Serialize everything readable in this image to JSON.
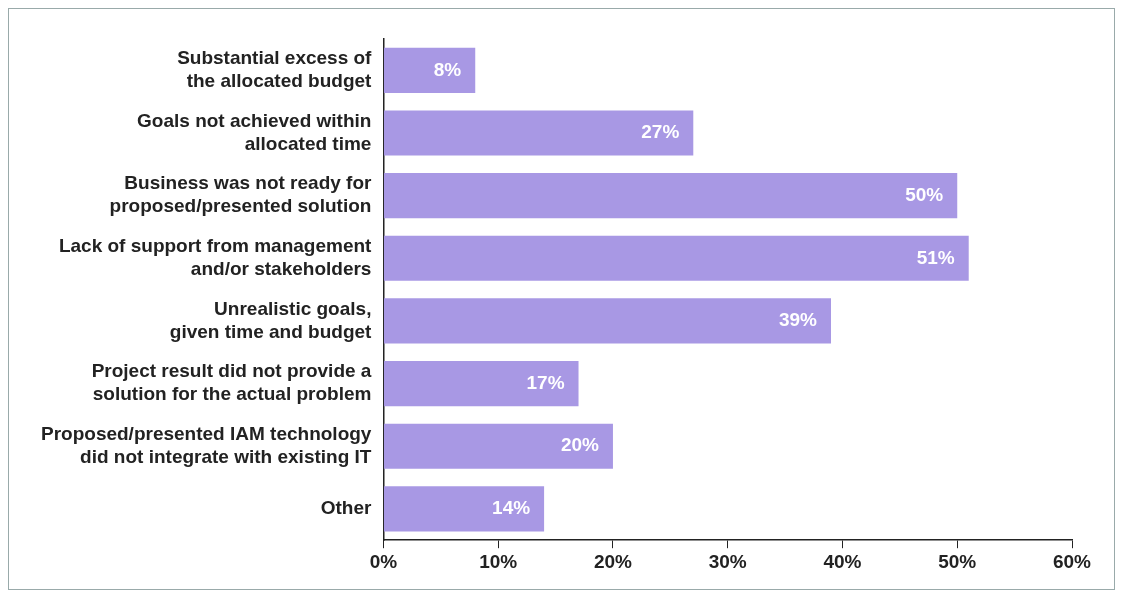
{
  "chart_data": {
    "type": "bar",
    "orientation": "horizontal",
    "categories": [
      "Substantial excess of\nthe allocated budget",
      "Goals not achieved within\nallocated time",
      "Business was not ready for\nproposed/presented solution",
      "Lack of support from management\nand/or stakeholders",
      "Unrealistic goals,\ngiven time and budget",
      "Project result did not provide a\nsolution for the actual problem",
      "Proposed/presented IAM technology\ndid not integrate with existing IT",
      "Other"
    ],
    "values": [
      8,
      27,
      50,
      51,
      39,
      17,
      20,
      14
    ],
    "color": "#a898e4",
    "value_labels": [
      "8%",
      "27%",
      "50%",
      "51%",
      "39%",
      "17%",
      "20%",
      "14%"
    ],
    "xlim": [
      0,
      60
    ],
    "xticks": [
      {
        "value": 0,
        "label": "0%"
      },
      {
        "value": 10,
        "label": "10%"
      },
      {
        "value": 20,
        "label": "20%"
      },
      {
        "value": 30,
        "label": "30%"
      },
      {
        "value": 40,
        "label": "40%"
      },
      {
        "value": 50,
        "label": "50%"
      },
      {
        "value": 60,
        "label": "60%"
      }
    ],
    "grid": false,
    "legend": false
  }
}
